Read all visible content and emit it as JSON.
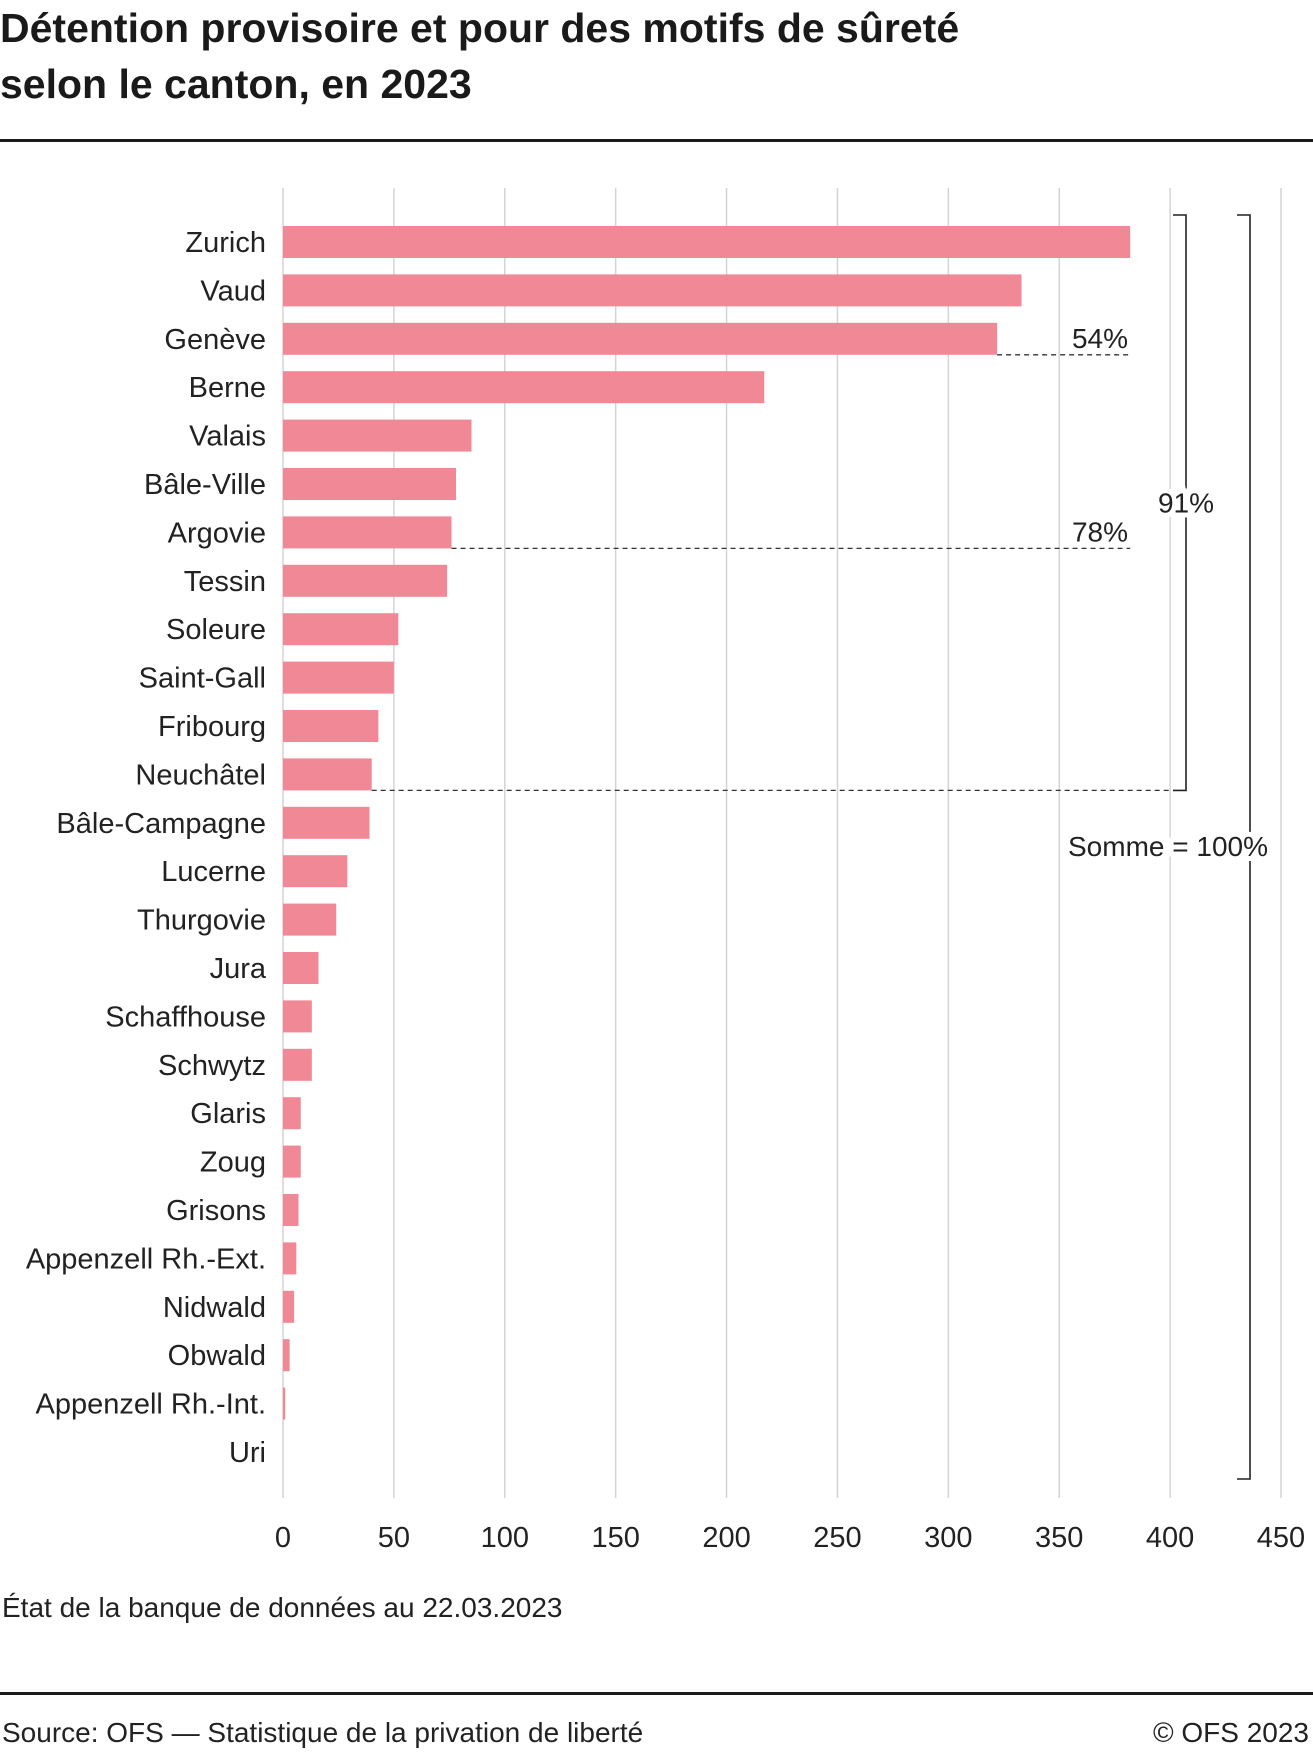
{
  "header": {
    "title_line1": "Détention provisoire et pour des motifs de sûreté",
    "title_line2": "selon le canton, en 2023"
  },
  "footer": {
    "note": "État de la banque de données au 22.03.2023",
    "source": "Source: OFS — Statistique de la privation de liberté",
    "copyright": "© OFS 2023"
  },
  "chart_data": {
    "type": "bar",
    "orientation": "horizontal",
    "title": "Détention provisoire et pour des motifs de sûreté selon le canton, en 2023",
    "categories": [
      "Zurich",
      "Vaud",
      "Genève",
      "Berne",
      "Valais",
      "Bâle-Ville",
      "Argovie",
      "Tessin",
      "Soleure",
      "Saint-Gall",
      "Fribourg",
      "Neuchâtel",
      "Bâle-Campagne",
      "Lucerne",
      "Thurgovie",
      "Jura",
      "Schaffhouse",
      "Schwytz",
      "Glaris",
      "Zoug",
      "Grisons",
      "Appenzell Rh.-Ext.",
      "Nidwald",
      "Obwald",
      "Appenzell Rh.-Int.",
      "Uri"
    ],
    "values": [
      382,
      333,
      322,
      217,
      85,
      78,
      76,
      74,
      52,
      50,
      43,
      40,
      39,
      29,
      24,
      16,
      13,
      13,
      8,
      8,
      7,
      6,
      5,
      3,
      1,
      0
    ],
    "xlim": [
      0,
      450
    ],
    "xticks": [
      0,
      50,
      100,
      150,
      200,
      250,
      300,
      350,
      400,
      450
    ],
    "grid": true,
    "bar_color": "#f08895",
    "annotations": [
      {
        "label": "54%",
        "from_category": "Zurich",
        "to_category": "Genève"
      },
      {
        "label": "78%",
        "from_category": "Zurich",
        "to_category": "Argovie"
      },
      {
        "label": "91%",
        "from_category": "Zurich",
        "to_category": "Neuchâtel"
      },
      {
        "label": "Somme = 100%",
        "from_category": "Zurich",
        "to_category": "Uri"
      }
    ]
  }
}
